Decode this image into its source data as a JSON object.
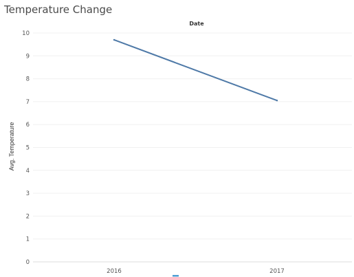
{
  "title": "Temperature Change",
  "chart_data": {
    "type": "line",
    "title": "Temperature Change",
    "column_header": "Date",
    "xlabel": "",
    "ylabel": "Avg. Temperature",
    "categories": [
      "2016",
      "2017"
    ],
    "series": [
      {
        "values": [
          9.7,
          7.05
        ],
        "color": "#4e79a7"
      }
    ],
    "ylim": [
      0,
      10
    ],
    "yticks": [
      0,
      1,
      2,
      3,
      4,
      5,
      6,
      7,
      8,
      9,
      10
    ],
    "grid": true,
    "legend": "bottom",
    "legend_swatch_color": "#4f9fd4"
  }
}
